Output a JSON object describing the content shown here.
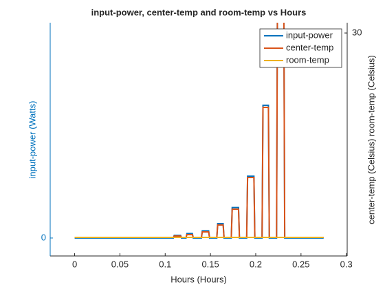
{
  "chart_data": {
    "type": "line",
    "title": "input-power, center-temp and room-temp vs Hours",
    "xlabel": "Hours (Hours)",
    "ylabel": "input-power (Watts)",
    "y2label": "center-temp (Celsius) room-temp (Celsius)",
    "xlim": [
      -0.027,
      0.301
    ],
    "xticks": [
      0,
      0.05,
      0.1,
      0.15,
      0.2,
      0.25,
      0.3
    ],
    "ylim": [
      -2,
      24
    ],
    "yticks": [
      0
    ],
    "y2lim": [
      8.4,
      31
    ],
    "y2ticks": [
      30
    ],
    "legend": "northeast",
    "yaxis_color": "#0072BD",
    "series": [
      {
        "name": "input-power",
        "color": "#0072BD",
        "x": [
          0,
          0.109,
          0.11,
          0.117,
          0.118,
          0.123,
          0.124,
          0.13,
          0.131,
          0.14,
          0.141,
          0.148,
          0.149,
          0.157,
          0.158,
          0.164,
          0.165,
          0.173,
          0.174,
          0.181,
          0.182,
          0.19,
          0.191,
          0.198,
          0.199,
          0.207,
          0.208,
          0.214,
          0.215,
          0.223,
          0.224,
          0.231,
          0.232,
          0.275
        ],
        "values": [
          0,
          0,
          0.3,
          0.3,
          0,
          0,
          0.5,
          0.5,
          0,
          0,
          0.8,
          0.8,
          0,
          0,
          1.6,
          1.6,
          0,
          0,
          3.4,
          3.4,
          0,
          0,
          6.9,
          6.9,
          0,
          0,
          14.8,
          14.8,
          0,
          0,
          28,
          28,
          0,
          0
        ]
      },
      {
        "name": "center-temp",
        "color": "#D95319",
        "axis": "y2",
        "x": [
          0,
          0.109,
          0.11,
          0.117,
          0.118,
          0.123,
          0.124,
          0.13,
          0.131,
          0.14,
          0.141,
          0.148,
          0.149,
          0.157,
          0.158,
          0.164,
          0.165,
          0.173,
          0.174,
          0.181,
          0.182,
          0.19,
          0.191,
          0.198,
          0.199,
          0.207,
          0.208,
          0.214,
          0.215,
          0.223,
          0.224,
          0.231,
          0.232,
          0.275
        ],
        "values": [
          10.2,
          10.2,
          10.33,
          10.33,
          10.2,
          10.2,
          10.47,
          10.47,
          10.2,
          10.2,
          10.73,
          10.73,
          10.2,
          10.2,
          11.4,
          11.4,
          10.2,
          10.2,
          12.93,
          12.93,
          10.2,
          10.2,
          16,
          16,
          10.2,
          10.2,
          22.8,
          22.8,
          10.2,
          10.2,
          33,
          33,
          10.2,
          10.2
        ]
      },
      {
        "name": "room-temp",
        "color": "#EDB120",
        "axis": "y2",
        "x": [
          0,
          0.275
        ],
        "values": [
          10.2,
          10.2
        ]
      }
    ]
  }
}
